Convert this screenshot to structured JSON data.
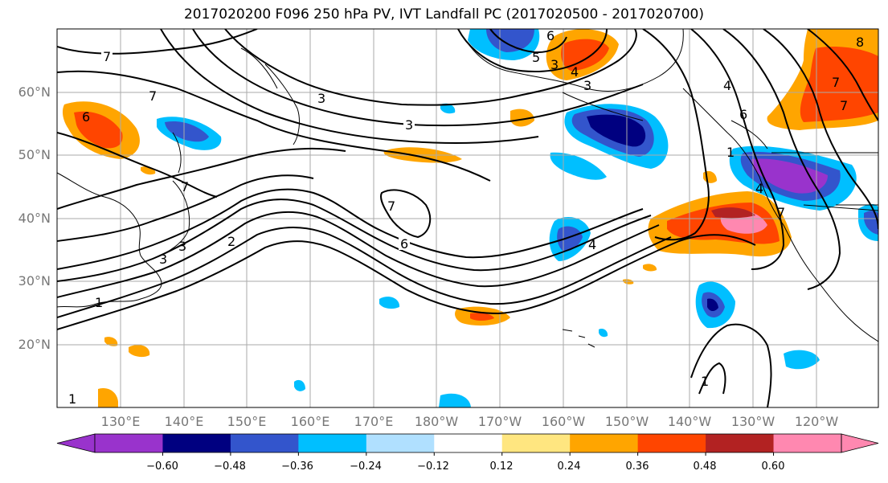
{
  "title": "2017020200 F096 250 hPa PV, IVT Landfall PC (2017020500 - 2017020700)",
  "lat_labels": [
    "60°N",
    "50°N",
    "40°N",
    "30°N",
    "20°N"
  ],
  "lon_labels": [
    "130°E",
    "140°E",
    "150°E",
    "160°E",
    "170°E",
    "180°W",
    "170°W",
    "160°W",
    "150°W",
    "140°W",
    "130°W",
    "120°W"
  ],
  "colorbar": {
    "tick_labels": [
      "−0.60",
      "−0.48",
      "−0.36",
      "−0.24",
      "−0.12",
      "0.12",
      "0.24",
      "0.36",
      "0.48",
      "0.60"
    ],
    "colors": [
      "#9933cc",
      "#000080",
      "#3355cc",
      "#00bfff",
      "#b0e0ff",
      "#ffffff",
      "#ffe680",
      "#ffa500",
      "#ff4500",
      "#b22222",
      "#ff88b0",
      "#ff88b0"
    ]
  },
  "contour_labels": [
    "7",
    "6",
    "7",
    "7",
    "3",
    "3",
    "2",
    "1",
    "3",
    "3",
    "7",
    "6",
    "4",
    "6",
    "5",
    "4",
    "3",
    "3",
    "4",
    "6",
    "1",
    "7",
    "7",
    "8",
    "4",
    "7",
    "1",
    "1"
  ],
  "colors": {
    "contour": "#000000",
    "coast": "#000000",
    "grid": "#aaaaaa",
    "axis_label": "#777777"
  }
}
